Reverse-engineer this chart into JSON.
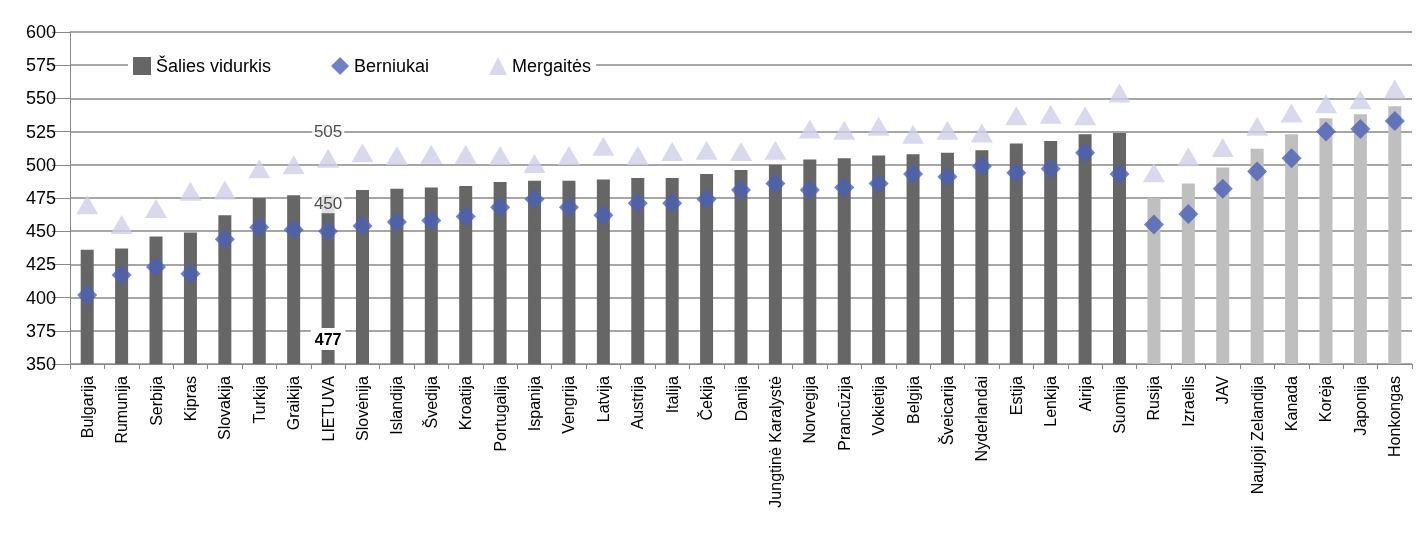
{
  "chart_data": {
    "type": "bar",
    "categories": [
      "Bulgarija",
      "Rumunija",
      "Serbija",
      "Kipras",
      "Slovakija",
      "Turkija",
      "Graikija",
      "LIETUVA",
      "Slovėnija",
      "Islandija",
      "Švedija",
      "Kroatija",
      "Portugalija",
      "Ispanija",
      "Vengrija",
      "Latvija",
      "Austrija",
      "Italija",
      "Čekija",
      "Danija",
      "Jungtinė Karalystė",
      "Norvegija",
      "Prancūzija",
      "Vokietija",
      "Belgija",
      "Šveicarija",
      "Nyderlandai",
      "Estija",
      "Lenkija",
      "Airija",
      "Suomija",
      "Rusija",
      "Izraelis",
      "JAV",
      "Naujoji Zelandija",
      "Kanada",
      "Korėja",
      "Japonija",
      "Honkongas"
    ],
    "series": [
      {
        "name": "Šalies vidurkis",
        "colors": [
          "#666666",
          "#666666",
          "#666666",
          "#666666",
          "#666666",
          "#666666",
          "#666666",
          "#666666",
          "#666666",
          "#666666",
          "#666666",
          "#666666",
          "#666666",
          "#666666",
          "#666666",
          "#666666",
          "#666666",
          "#666666",
          "#666666",
          "#666666",
          "#666666",
          "#666666",
          "#666666",
          "#666666",
          "#666666",
          "#666666",
          "#666666",
          "#666666",
          "#666666",
          "#666666",
          "#666666",
          "#bfbfbf",
          "#bfbfbf",
          "#bfbfbf",
          "#bfbfbf",
          "#bfbfbf",
          "#bfbfbf",
          "#bfbfbf",
          "#bfbfbf"
        ],
        "values": [
          436,
          437,
          446,
          449,
          462,
          475,
          477,
          477,
          481,
          482,
          483,
          484,
          487,
          488,
          488,
          489,
          490,
          490,
          493,
          496,
          500,
          504,
          505,
          507,
          508,
          509,
          511,
          516,
          518,
          523,
          524,
          475,
          486,
          498,
          512,
          523,
          535,
          538,
          544
        ],
        "value_labels": [
          null,
          null,
          null,
          null,
          null,
          null,
          null,
          "477",
          null,
          null,
          null,
          null,
          null,
          null,
          null,
          null,
          null,
          null,
          null,
          null,
          null,
          null,
          null,
          null,
          null,
          null,
          null,
          null,
          null,
          null,
          null,
          null,
          null,
          null,
          null,
          null,
          null,
          null,
          null
        ]
      },
      {
        "name": "Berniukai",
        "type": "scatter",
        "marker": "diamond",
        "color": "#4a62b8",
        "values": [
          402,
          417,
          423,
          418,
          444,
          453,
          451,
          450,
          454,
          457,
          458,
          461,
          468,
          474,
          468,
          462,
          471,
          471,
          474,
          481,
          486,
          481,
          483,
          486,
          493,
          491,
          499,
          494,
          497,
          509,
          493,
          455,
          463,
          482,
          495,
          505,
          525,
          527,
          533
        ],
        "value_labels": [
          null,
          null,
          null,
          null,
          null,
          null,
          null,
          "450",
          null,
          null,
          null,
          null,
          null,
          null,
          null,
          null,
          null,
          null,
          null,
          null,
          null,
          null,
          null,
          null,
          null,
          null,
          null,
          null,
          null,
          null,
          null,
          null,
          null,
          null,
          null,
          null,
          null,
          null,
          null
        ]
      },
      {
        "name": "Mergaitės",
        "type": "scatter",
        "marker": "triangle",
        "color": "#cfcfea",
        "values": [
          470,
          455,
          467,
          480,
          481,
          497,
          500,
          505,
          509,
          507,
          508,
          508,
          507,
          501,
          507,
          514,
          507,
          510,
          511,
          510,
          511,
          527,
          526,
          529,
          523,
          526,
          524,
          537,
          538,
          537,
          554,
          494,
          506,
          513,
          529,
          539,
          546,
          549,
          557
        ],
        "value_labels": [
          null,
          null,
          null,
          null,
          null,
          null,
          null,
          "505",
          null,
          null,
          null,
          null,
          null,
          null,
          null,
          null,
          null,
          null,
          null,
          null,
          null,
          null,
          null,
          null,
          null,
          null,
          null,
          null,
          null,
          null,
          null,
          null,
          null,
          null,
          null,
          null,
          null,
          null,
          null
        ]
      }
    ],
    "ylim": [
      350,
      600
    ],
    "yticks": [
      350,
      375,
      400,
      425,
      450,
      475,
      500,
      525,
      550,
      575,
      600
    ],
    "grid": "y",
    "legend": "top left"
  }
}
